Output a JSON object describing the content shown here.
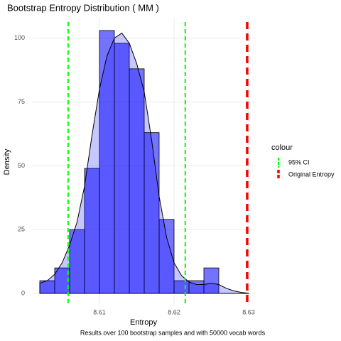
{
  "chart_data": {
    "type": "histogram",
    "title": "Bootstrap Entropy Distribution ( MM )",
    "xlabel": "Entropy",
    "ylabel": "Density",
    "caption": "Results over 100 bootstrap samples and with 50000 vocab words",
    "bins": [
      8.602,
      8.604,
      8.606,
      8.608,
      8.61,
      8.612,
      8.614,
      8.616,
      8.618,
      8.62,
      8.622,
      8.624,
      8.626
    ],
    "values": [
      5,
      10,
      25,
      49,
      103,
      98,
      88,
      63,
      29,
      5,
      5,
      10
    ],
    "color": "#0000ff",
    "density": {
      "x": [
        8.602,
        8.603,
        8.604,
        8.605,
        8.606,
        8.607,
        8.608,
        8.609,
        8.61,
        8.611,
        8.612,
        8.613,
        8.614,
        8.615,
        8.616,
        8.617,
        8.618,
        8.619,
        8.62,
        8.621,
        8.622,
        8.623,
        8.624,
        8.625,
        8.626,
        8.627,
        8.628,
        8.629,
        8.63
      ],
      "y": [
        4,
        5,
        7.5,
        12,
        19,
        28,
        42,
        62,
        80,
        93,
        100,
        102,
        98,
        90,
        79,
        60,
        38,
        22,
        12,
        7,
        4.5,
        3.5,
        3.5,
        4,
        3.5,
        2,
        1,
        0.4,
        0.1
      ]
    },
    "legend_title": "colour",
    "series": [
      {
        "name": "95% CI",
        "color": "#00ff00",
        "values": [
          8.6058,
          8.6215
        ]
      },
      {
        "name": "Original Entropy",
        "color": "#ff0000",
        "values": [
          8.6298
        ]
      }
    ],
    "xlim": [
      8.601,
      8.631
    ],
    "ylim": [
      -5,
      108
    ],
    "xticks": [
      8.61,
      8.62,
      8.63
    ],
    "yticks": [
      0,
      25,
      50,
      75,
      100
    ],
    "grid": true
  }
}
